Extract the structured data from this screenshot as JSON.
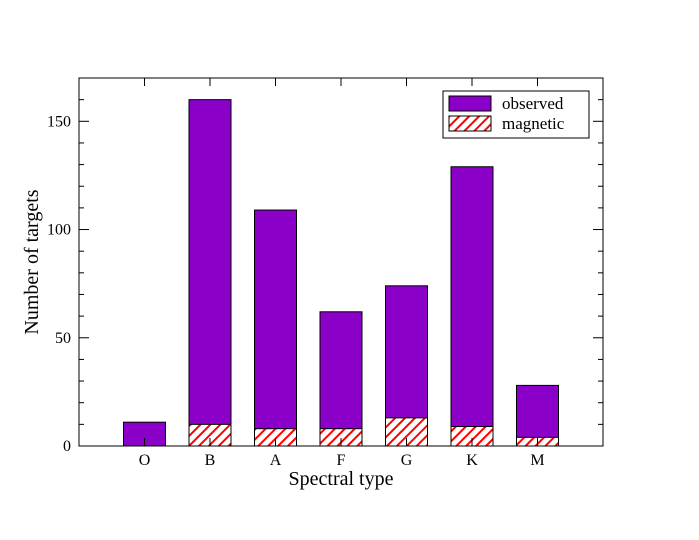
{
  "chart_data": {
    "type": "bar",
    "xlabel": "Spectral type",
    "ylabel": "Number of targets",
    "categories": [
      "O",
      "B",
      "A",
      "F",
      "G",
      "K",
      "M"
    ],
    "series": [
      {
        "name": "observed",
        "values": [
          11,
          160,
          109,
          62,
          74,
          129,
          28
        ],
        "color": "#8B00C8",
        "fill": "solid"
      },
      {
        "name": "magnetic",
        "values": [
          0,
          10,
          8,
          8,
          13,
          9,
          4
        ],
        "color": "#FF0000",
        "fill": "hatched"
      }
    ],
    "ylim": [
      0,
      170
    ],
    "yticks": [
      0,
      50,
      100,
      150
    ],
    "grid": false,
    "legend_position": "top-right"
  }
}
